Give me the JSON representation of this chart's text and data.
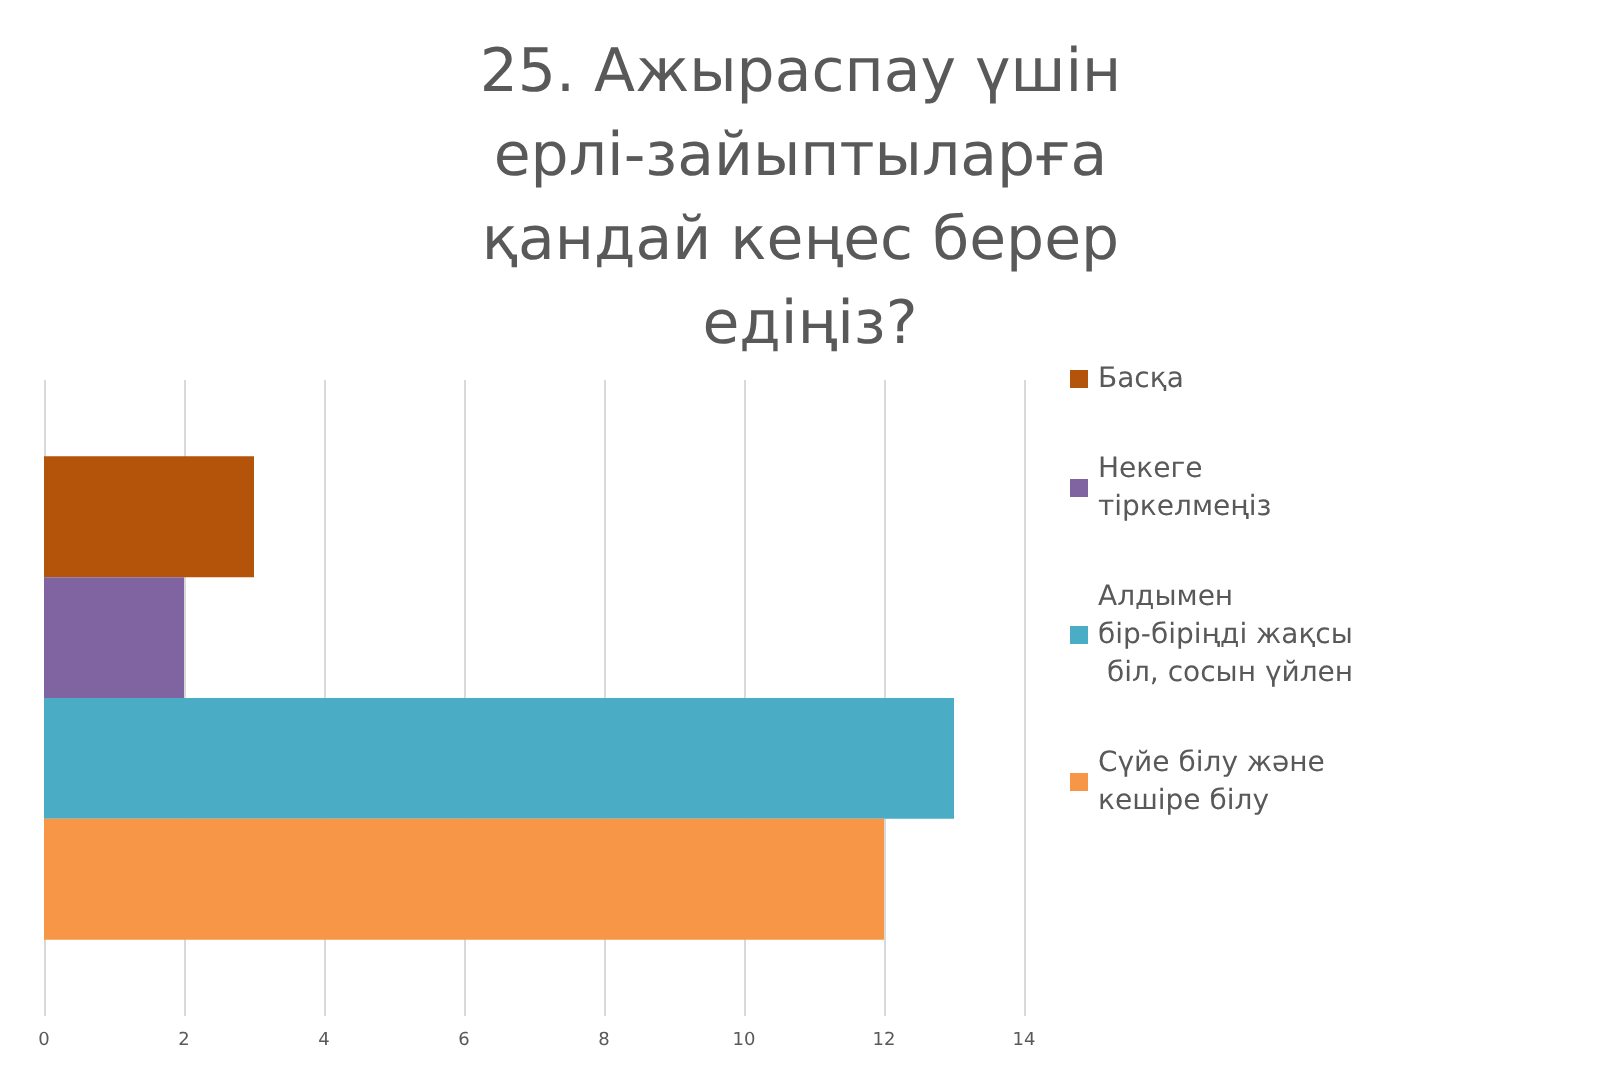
{
  "chart_data": {
    "type": "bar",
    "orientation": "horizontal",
    "title": "25. Ажыраспау үшін ерлі-зайыптыларға қандай кеңес берер едіңіз?",
    "categories": [
      null
    ],
    "series": [
      {
        "name": "Басқа",
        "color": "#b4540a",
        "values": [
          3
        ]
      },
      {
        "name": "Некеге тіркелмеңіз",
        "color": "#8064a2",
        "values": [
          2
        ]
      },
      {
        "name": "Алдымен бір-біріңді жақсы біл, сосын үйлен",
        "color": "#4bacc6",
        "values": [
          13
        ]
      },
      {
        "name": "Сүйе білу және кешіре білу",
        "color": "#f79646",
        "values": [
          12
        ]
      }
    ],
    "xlim": [
      0,
      14
    ],
    "xticks": [
      0,
      2,
      4,
      6,
      8,
      10,
      12,
      14
    ],
    "grid": "x",
    "legend": "right"
  }
}
